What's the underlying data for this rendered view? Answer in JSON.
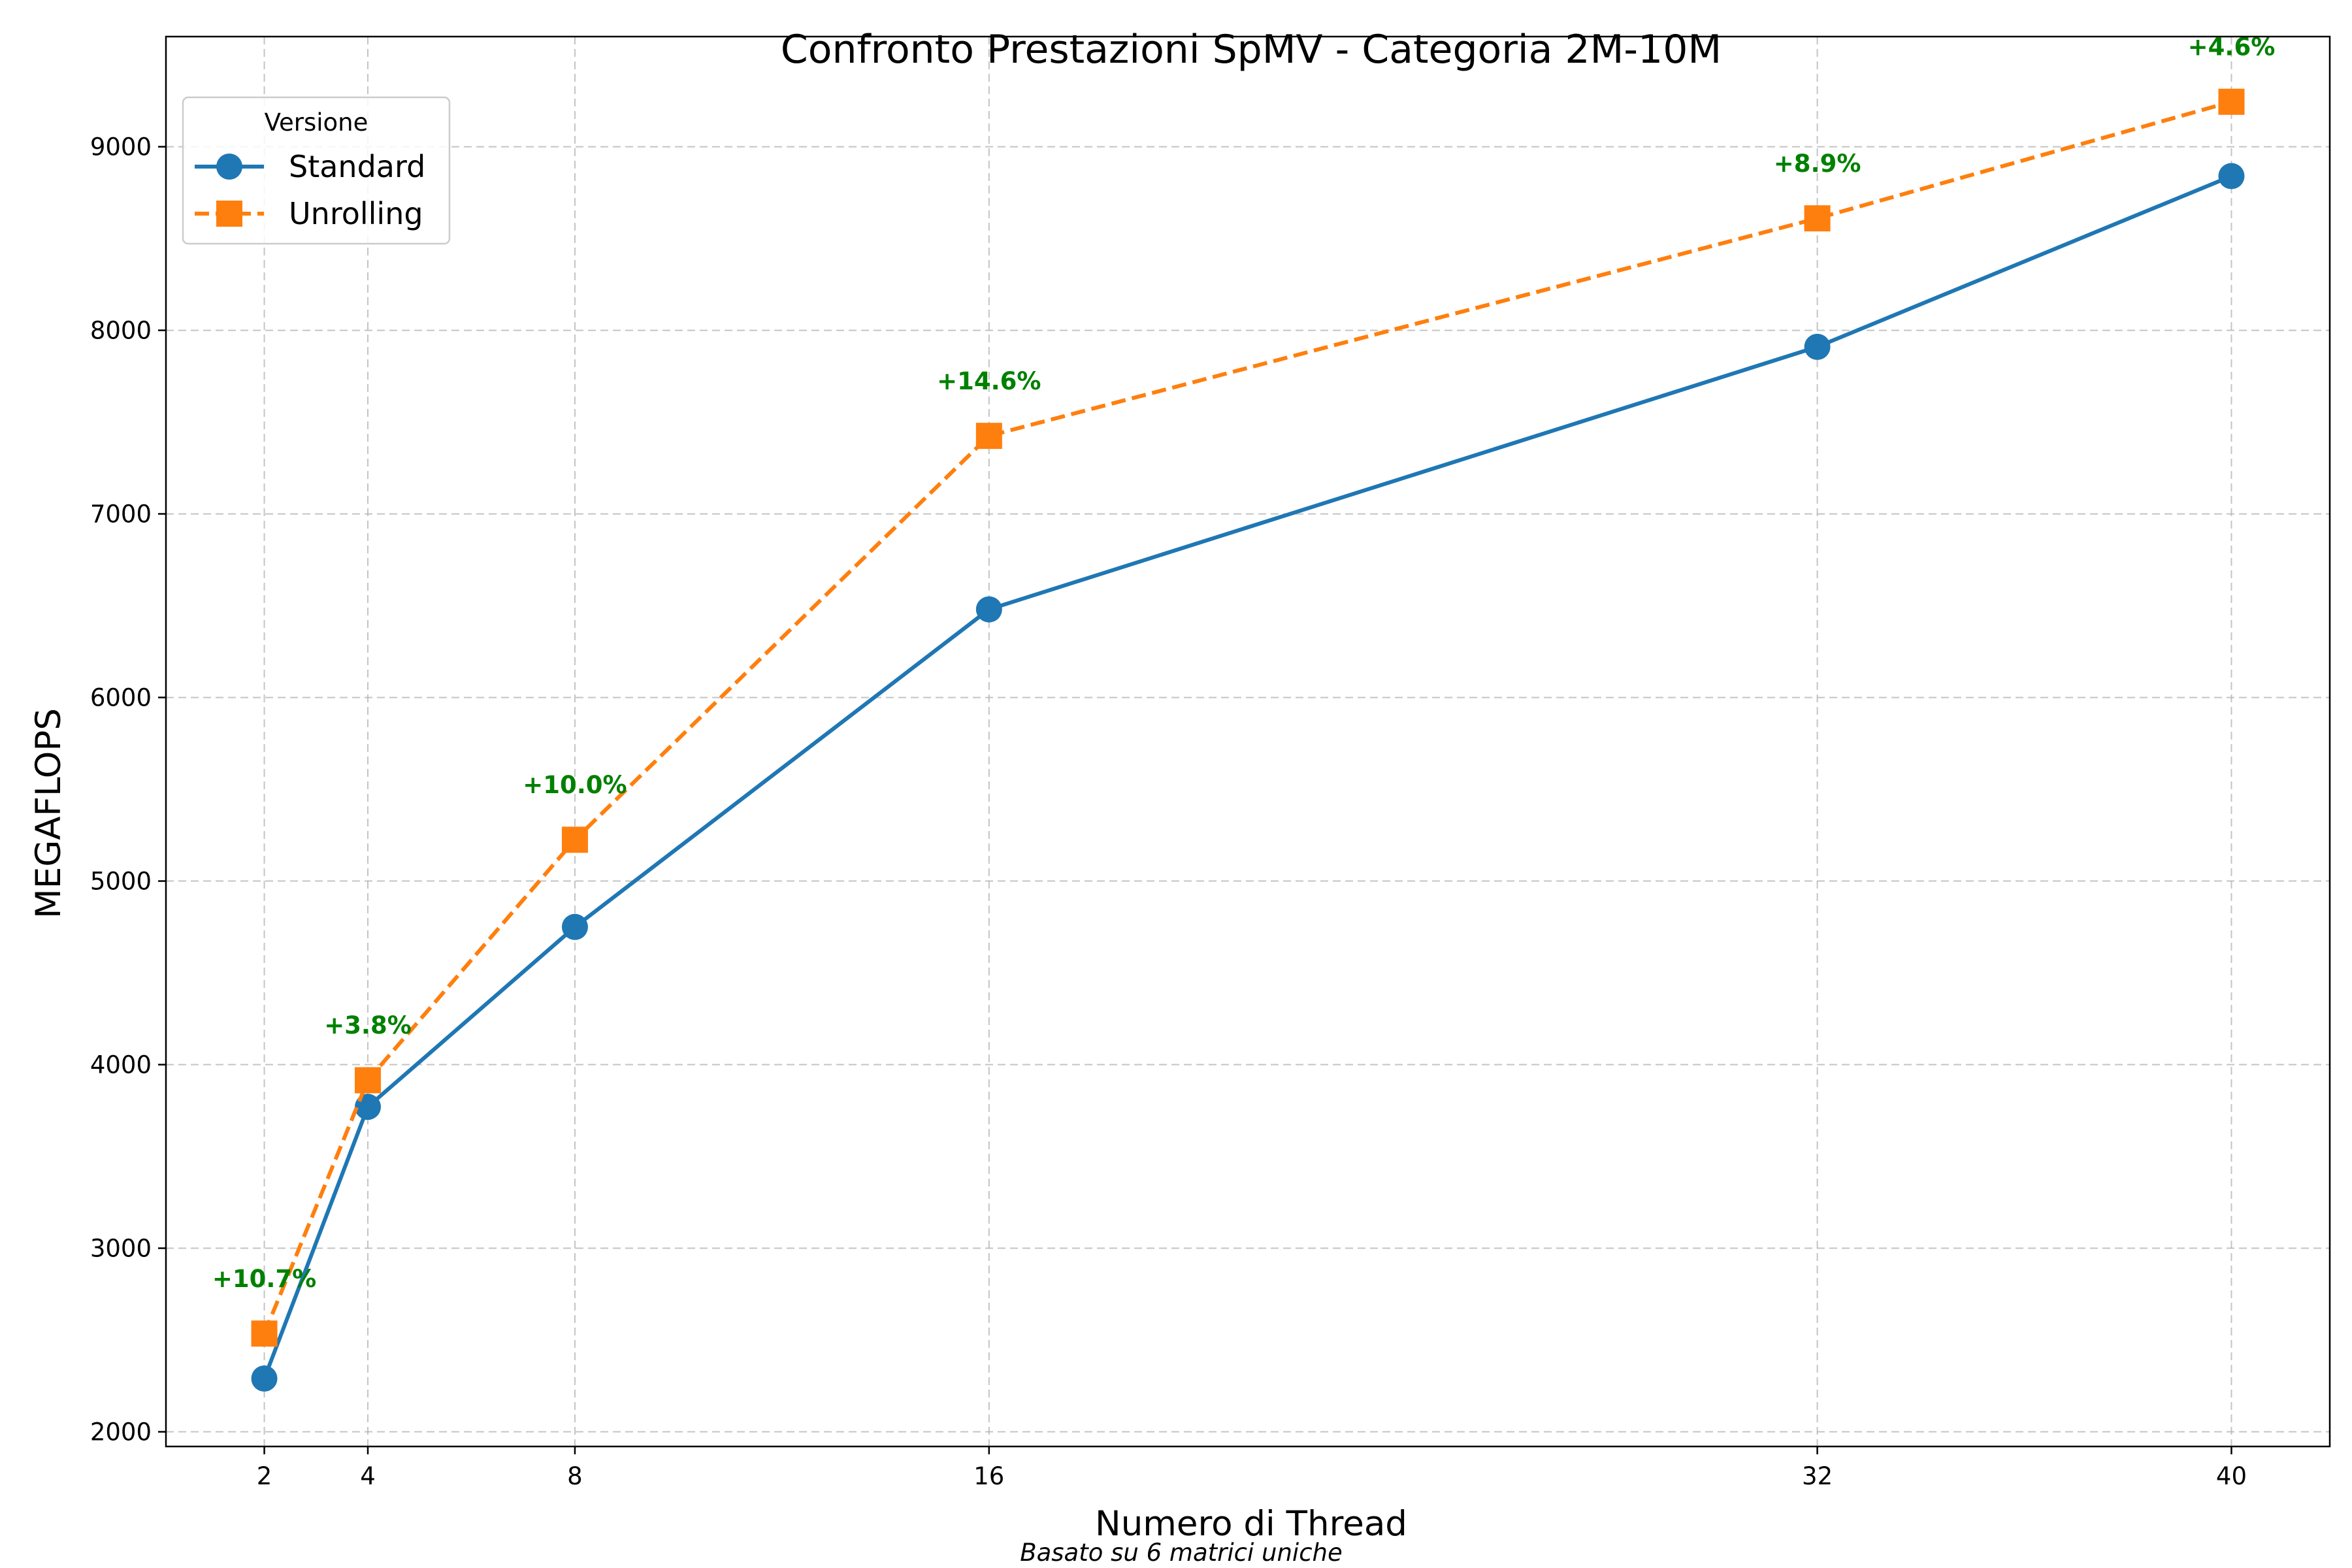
{
  "chart_data": {
    "type": "line",
    "title": "Confronto Prestazioni SpMV - Categoria 2M-10M",
    "xlabel": "Numero di Thread",
    "ylabel": "MEGAFLOPS",
    "footnote": "Basato su 6 matrici uniche",
    "x": [
      2,
      4,
      8,
      16,
      32,
      40
    ],
    "x_tick_labels": [
      "2",
      "4",
      "8",
      "16",
      "32",
      "40"
    ],
    "xlim": [
      0.1,
      41.9
    ],
    "ylim": [
      1920,
      9600
    ],
    "y_ticks": [
      2000,
      3000,
      4000,
      5000,
      6000,
      7000,
      8000,
      9000
    ],
    "y_tick_labels": [
      "2000",
      "3000",
      "4000",
      "5000",
      "6000",
      "7000",
      "8000",
      "9000"
    ],
    "grid": true,
    "legend": {
      "title": "Versione",
      "placement": "top-left"
    },
    "series": [
      {
        "name": "Standard",
        "marker": "circle",
        "line_style": "solid",
        "color": "#1f77b4",
        "values": [
          2290,
          3770,
          4750,
          6480,
          7910,
          8840
        ]
      },
      {
        "name": "Unrolling",
        "marker": "square",
        "line_style": "dashed",
        "color": "#ff7f0e",
        "values": [
          2535,
          3915,
          5225,
          7425,
          8610,
          9245
        ]
      }
    ],
    "annotations": {
      "color": "#008000",
      "labels": [
        "+10.7%",
        "+3.8%",
        "+10.0%",
        "+14.6%",
        "+8.9%",
        "+4.6%"
      ]
    }
  }
}
